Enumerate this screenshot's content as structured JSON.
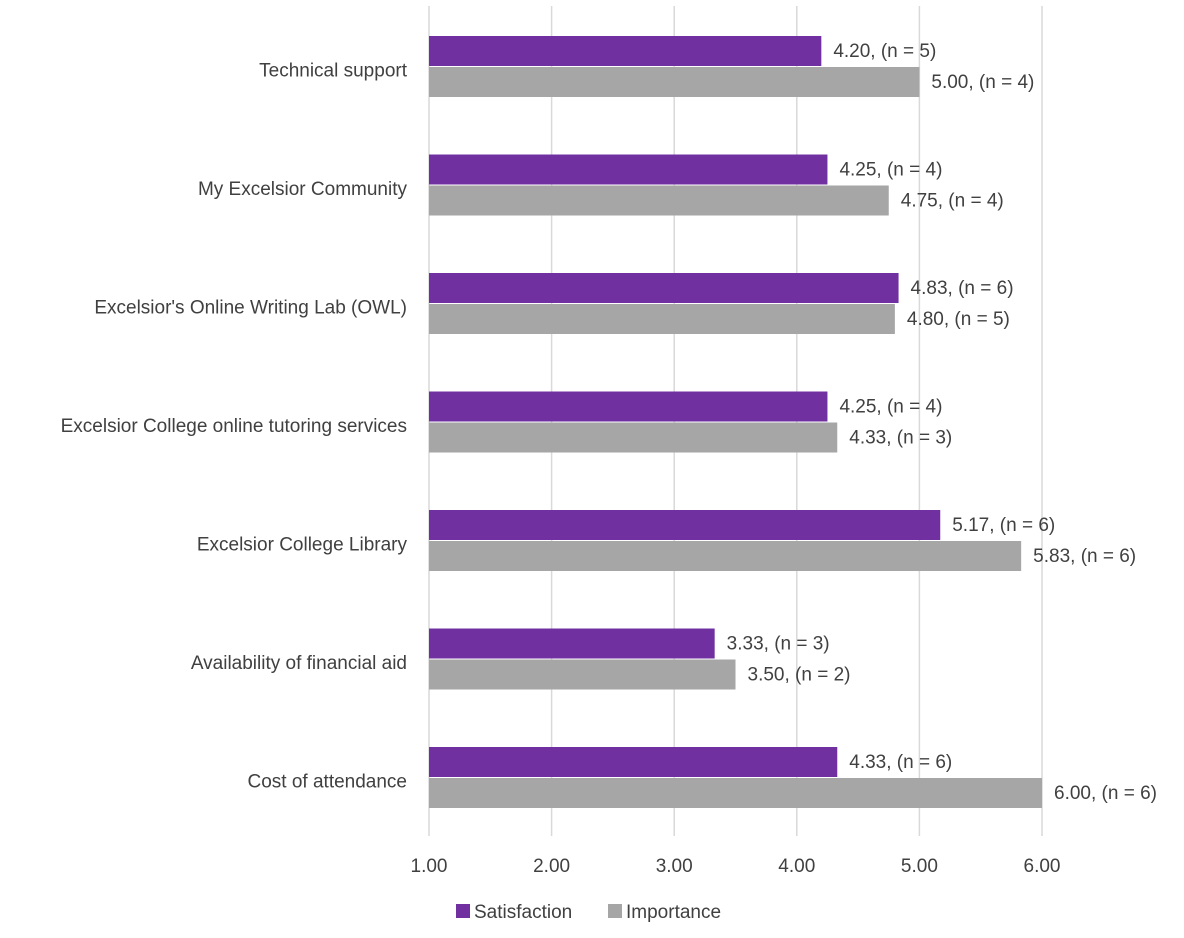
{
  "chart_data": {
    "type": "bar",
    "orientation": "horizontal",
    "categories": [
      "Technical support",
      "My Excelsior Community",
      "Excelsior's Online Writing Lab (OWL)",
      "Excelsior College online tutoring services",
      "Excelsior College Library",
      "Availability of financial aid",
      "Cost of attendance"
    ],
    "series": [
      {
        "name": "Satisfaction",
        "color": "#7030a0",
        "values": [
          4.2,
          4.25,
          4.83,
          4.25,
          5.17,
          3.33,
          4.33
        ],
        "labels": [
          "4.20, (n = 5)",
          "4.25, (n = 4)",
          "4.83, (n = 6)",
          "4.25, (n = 4)",
          "5.17, (n = 6)",
          "3.33, (n = 3)",
          "4.33, (n = 6)"
        ]
      },
      {
        "name": "Importance",
        "color": "#a6a6a6",
        "values": [
          5.0,
          4.75,
          4.8,
          4.33,
          5.83,
          3.5,
          6.0
        ],
        "labels": [
          "5.00, (n = 4)",
          "4.75, (n = 4)",
          "4.80, (n = 5)",
          "4.33, (n = 3)",
          "5.83, (n = 6)",
          "3.50, (n = 2)",
          "6.00, (n = 6)"
        ]
      }
    ],
    "xlim": [
      1,
      6
    ],
    "xticks": [
      "1.00",
      "2.00",
      "3.00",
      "4.00",
      "5.00",
      "6.00"
    ],
    "grid": true,
    "legend": "bottom",
    "title": "",
    "xlabel": "",
    "ylabel": ""
  }
}
